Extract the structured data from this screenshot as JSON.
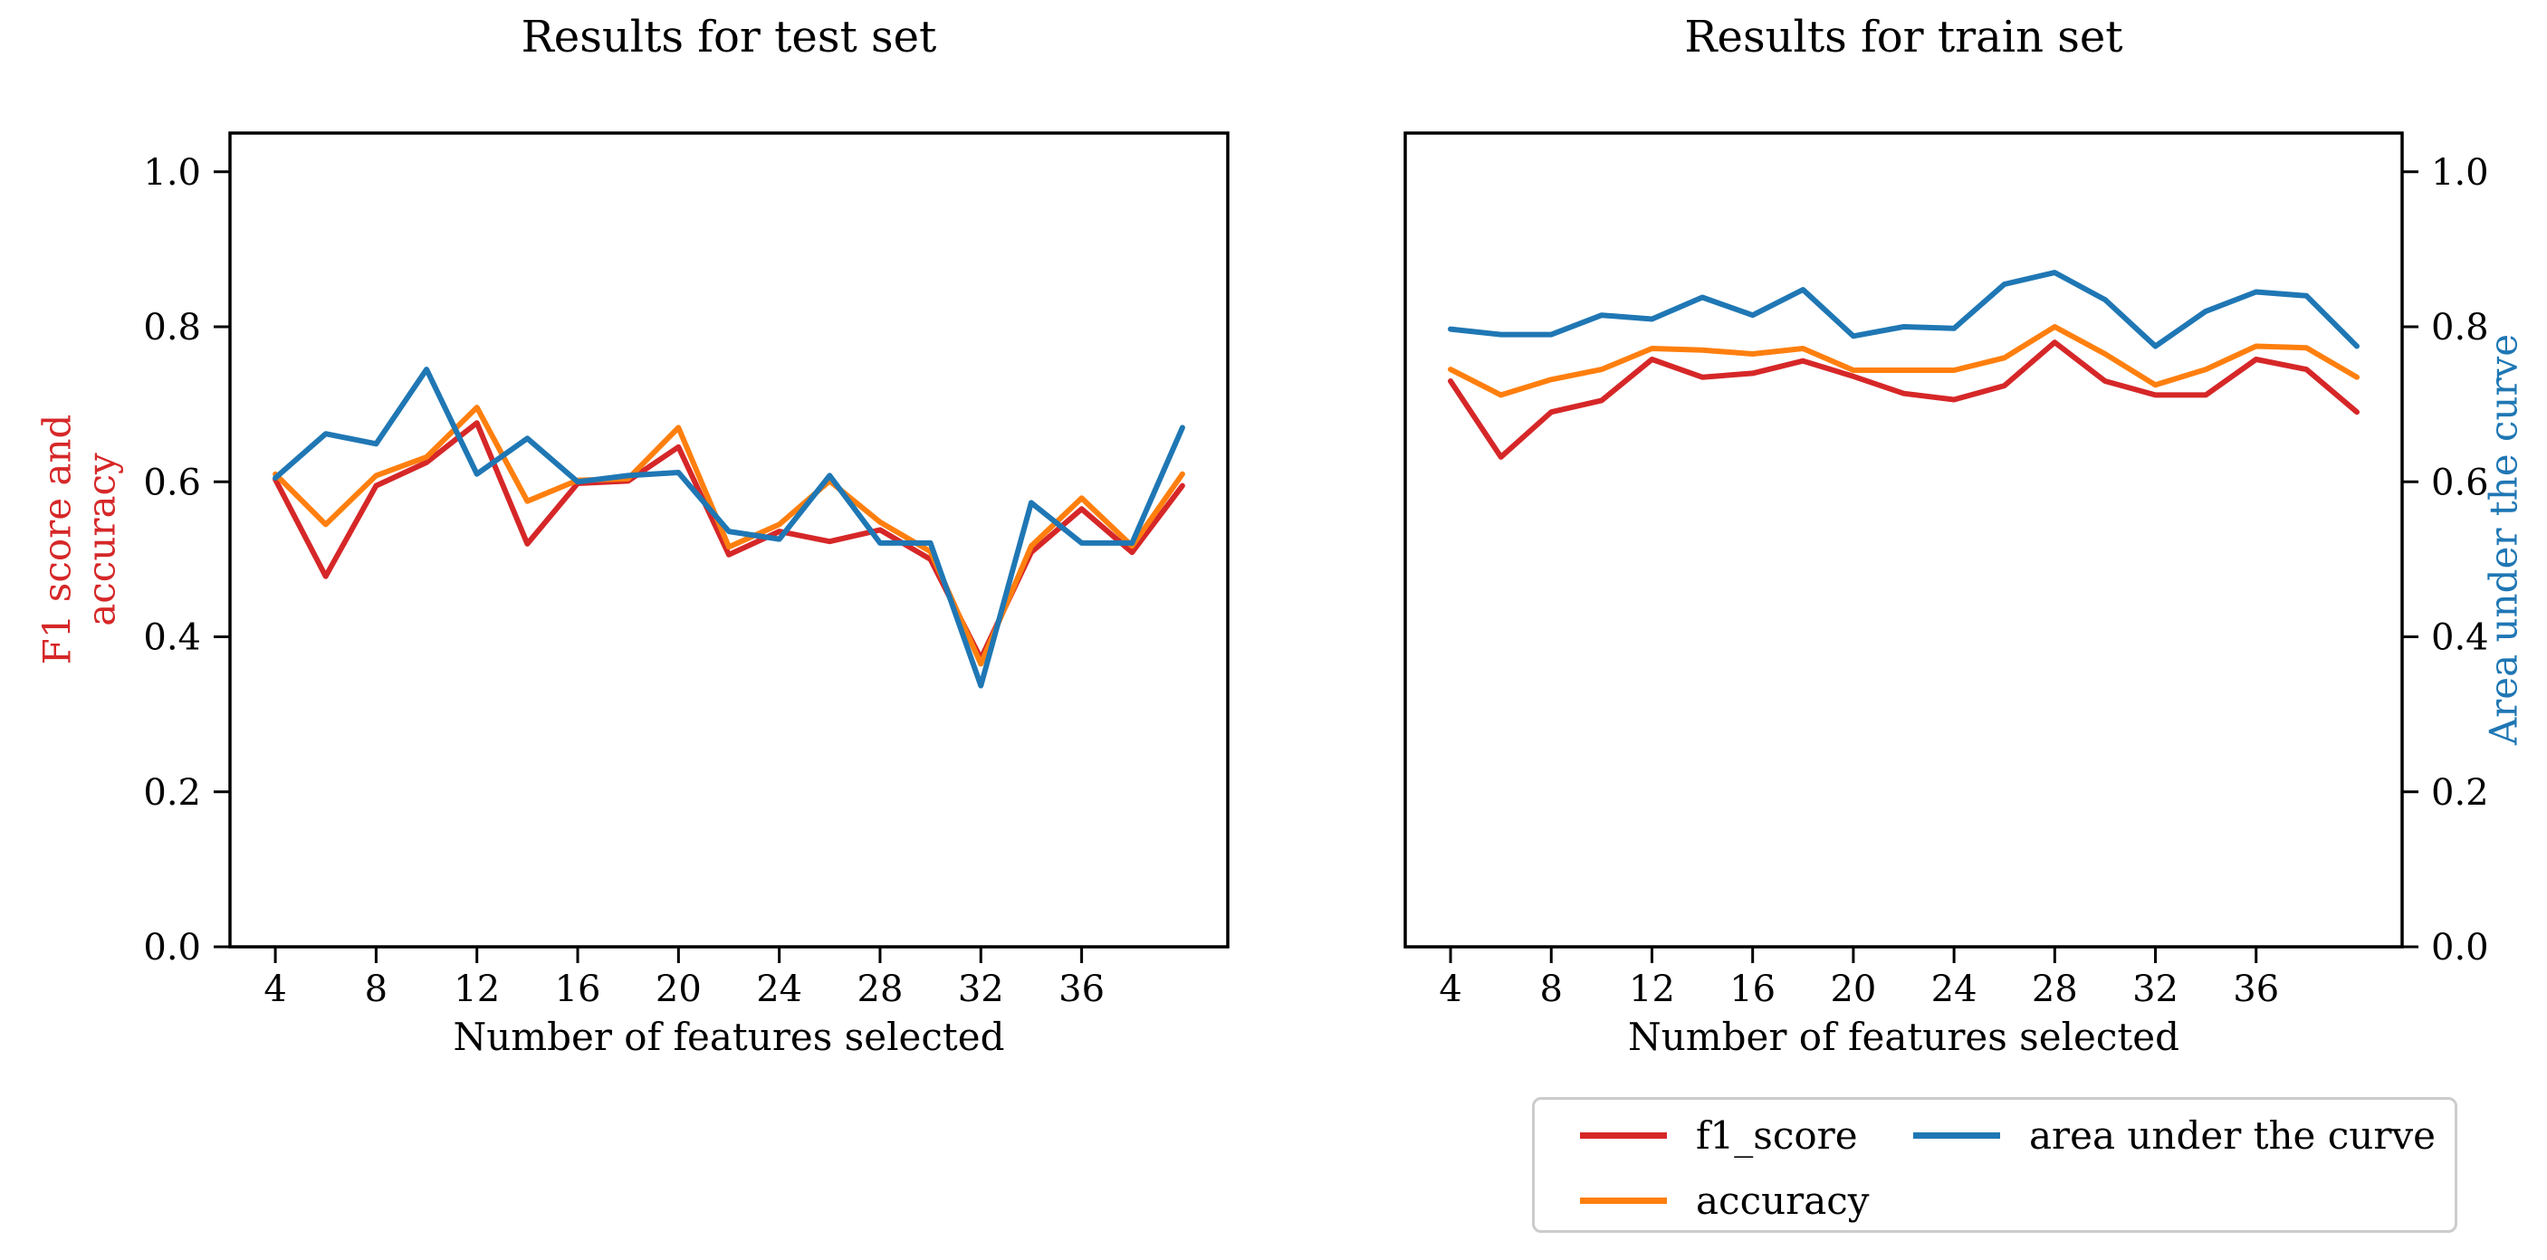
{
  "figure": {
    "background": "#ffffff",
    "text_color": "#000000",
    "frame_color": "#000000",
    "legend": {
      "border_color": "#cccccc",
      "items": [
        {
          "label": "f1_score",
          "color": "#d62728"
        },
        {
          "label": "accuracy",
          "color": "#ff7f0e"
        },
        {
          "label": "area under the curve",
          "color": "#1f77b4"
        }
      ]
    }
  },
  "chart_data": [
    {
      "type": "line",
      "title": "Results for test set",
      "xlabel": "Number of features selected",
      "ylabel": "F1 score and\naccuracy",
      "ylabel_side": "left",
      "ylabel_color": "#d62728",
      "grid": false,
      "legend_position": "below right subplot, 2 columns",
      "xlim": [
        2.2,
        41.8
      ],
      "ylim": [
        0,
        1.05
      ],
      "xticks": [
        "4",
        "8",
        "12",
        "16",
        "20",
        "24",
        "28",
        "32",
        "36"
      ],
      "yticks": [
        "0.0",
        "0.2",
        "0.4",
        "0.6",
        "0.8",
        "1.0"
      ],
      "ytick_side": "left",
      "x": [
        4,
        6,
        8,
        10,
        12,
        14,
        16,
        18,
        20,
        22,
        24,
        26,
        28,
        30,
        32,
        34,
        36,
        38,
        40
      ],
      "series": [
        {
          "name": "f1_score",
          "color": "#d62728",
          "values": [
            0.603,
            0.478,
            0.595,
            0.625,
            0.676,
            0.52,
            0.598,
            0.601,
            0.645,
            0.506,
            0.536,
            0.523,
            0.538,
            0.5,
            0.372,
            0.509,
            0.565,
            0.509,
            0.595
          ]
        },
        {
          "name": "accuracy",
          "color": "#ff7f0e",
          "values": [
            0.61,
            0.545,
            0.608,
            0.632,
            0.696,
            0.575,
            0.602,
            0.604,
            0.67,
            0.516,
            0.545,
            0.601,
            0.548,
            0.51,
            0.365,
            0.517,
            0.579,
            0.517,
            0.61
          ]
        },
        {
          "name": "area under the curve",
          "color": "#1f77b4",
          "values": [
            0.605,
            0.662,
            0.649,
            0.745,
            0.61,
            0.656,
            0.6,
            0.608,
            0.612,
            0.536,
            0.526,
            0.608,
            0.521,
            0.521,
            0.337,
            0.573,
            0.521,
            0.521,
            0.67
          ]
        }
      ]
    },
    {
      "type": "line",
      "title": "Results for train set",
      "xlabel": "Number of features selected",
      "ylabel": "Area under the curve",
      "ylabel_side": "right",
      "ylabel_color": "#1f77b4",
      "grid": false,
      "xlim": [
        2.2,
        41.8
      ],
      "ylim": [
        0,
        1.05
      ],
      "xticks": [
        "4",
        "8",
        "12",
        "16",
        "20",
        "24",
        "28",
        "32",
        "36"
      ],
      "yticks": [
        "0.0",
        "0.2",
        "0.4",
        "0.6",
        "0.8",
        "1.0"
      ],
      "ytick_side": "right",
      "x": [
        4,
        6,
        8,
        10,
        12,
        14,
        16,
        18,
        20,
        22,
        24,
        26,
        28,
        30,
        32,
        34,
        36,
        38,
        40
      ],
      "series": [
        {
          "name": "f1_score",
          "color": "#d62728",
          "values": [
            0.73,
            0.632,
            0.69,
            0.705,
            0.758,
            0.735,
            0.74,
            0.756,
            0.736,
            0.714,
            0.706,
            0.724,
            0.78,
            0.73,
            0.712,
            0.712,
            0.758,
            0.745,
            0.69
          ]
        },
        {
          "name": "accuracy",
          "color": "#ff7f0e",
          "values": [
            0.745,
            0.712,
            0.732,
            0.745,
            0.772,
            0.77,
            0.765,
            0.772,
            0.744,
            0.744,
            0.744,
            0.76,
            0.8,
            0.765,
            0.725,
            0.745,
            0.775,
            0.773,
            0.735
          ]
        },
        {
          "name": "area under the curve",
          "color": "#1f77b4",
          "values": [
            0.797,
            0.79,
            0.79,
            0.815,
            0.81,
            0.838,
            0.815,
            0.848,
            0.788,
            0.8,
            0.798,
            0.855,
            0.87,
            0.835,
            0.775,
            0.82,
            0.845,
            0.84,
            0.775
          ]
        }
      ]
    }
  ]
}
